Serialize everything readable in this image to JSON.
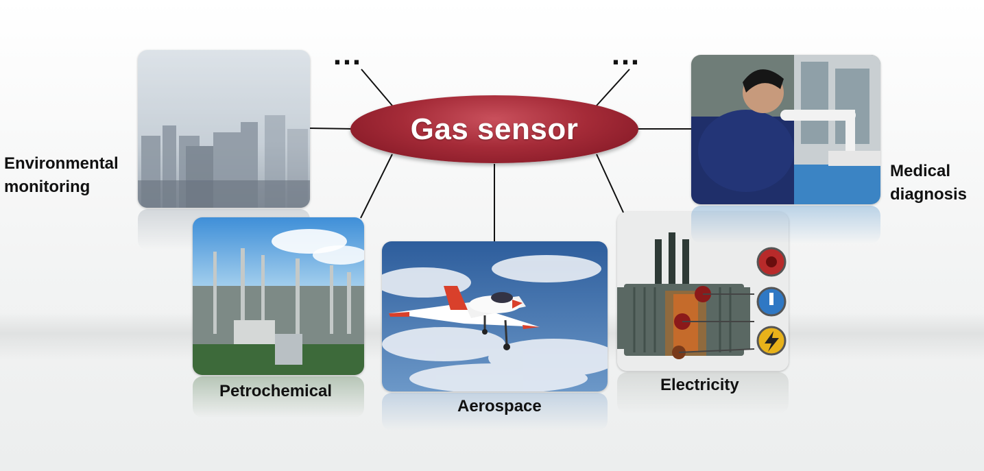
{
  "diagram": {
    "center": {
      "label": "Gas sensor"
    },
    "ellipsis_left": "…",
    "ellipsis_right": "…",
    "applications": [
      {
        "id": "environmental",
        "label_line1": "Environmental",
        "label_line2": "monitoring"
      },
      {
        "id": "petrochemical",
        "label_line1": "Petrochemical"
      },
      {
        "id": "aerospace",
        "label_line1": "Aerospace"
      },
      {
        "id": "electricity",
        "label_line1": "Electricity"
      },
      {
        "id": "medical",
        "label_line1": "Medical",
        "label_line2": "diagnosis"
      }
    ]
  },
  "colors": {
    "center_fill": "#a52b38",
    "center_text": "#ffffff",
    "connector": "#111111",
    "label_text": "#111111"
  }
}
